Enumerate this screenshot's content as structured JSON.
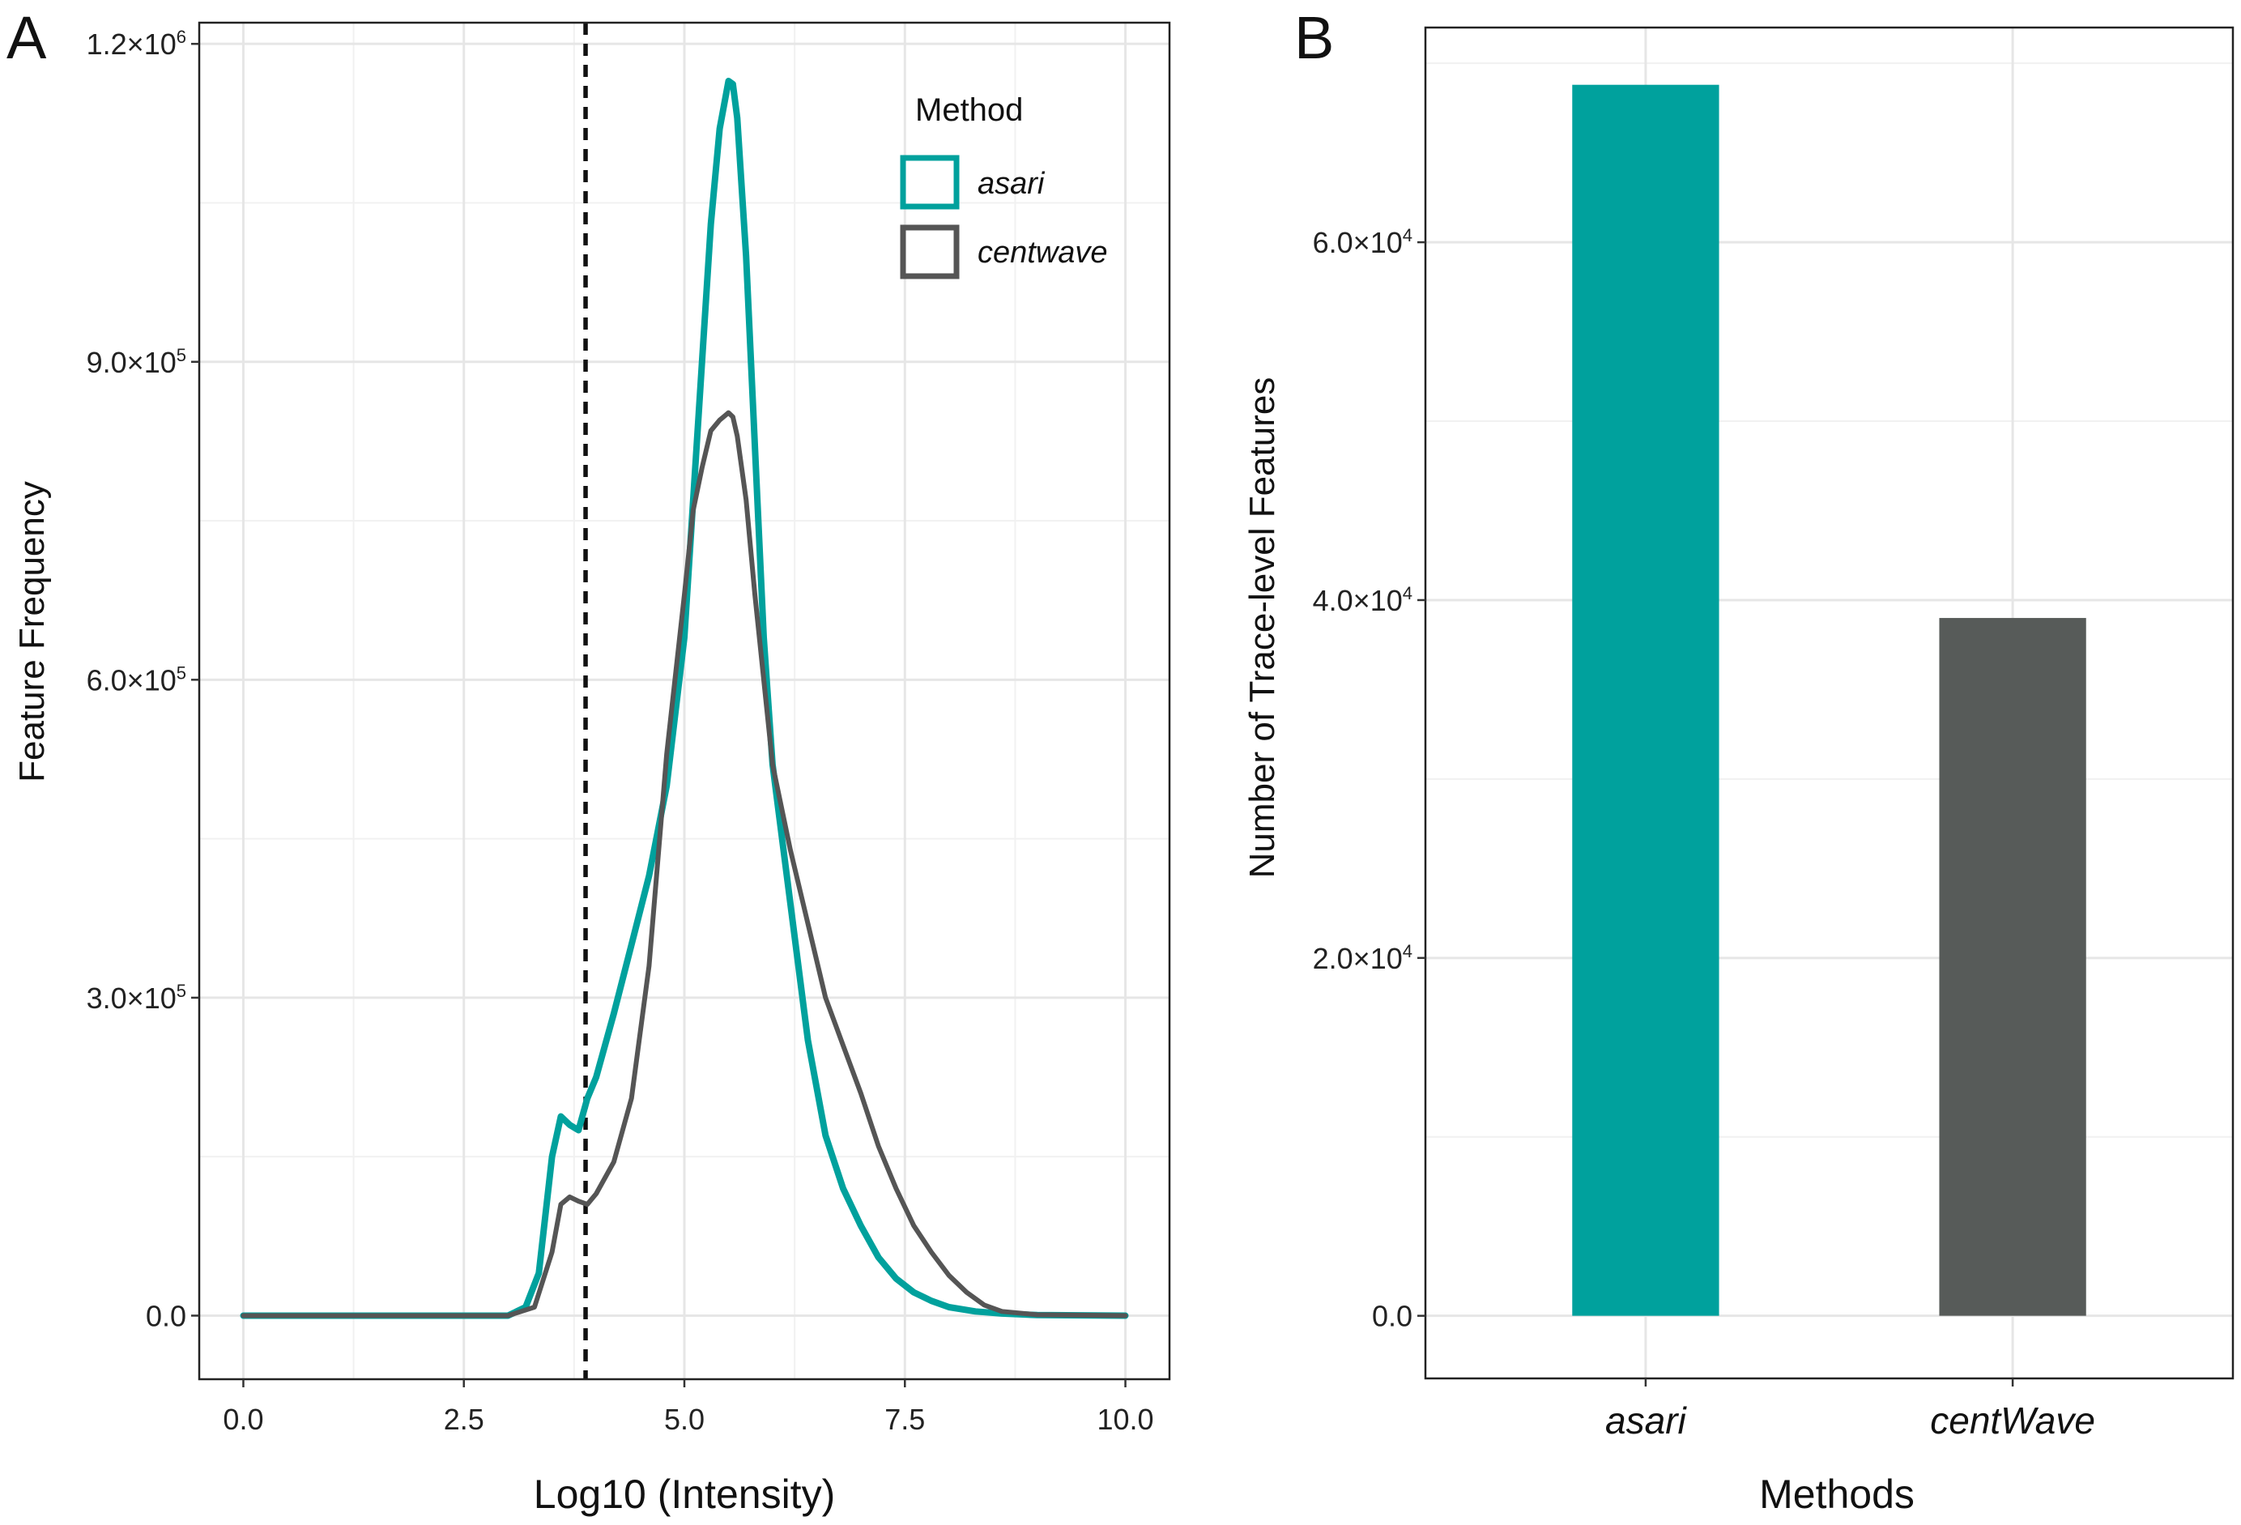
{
  "chart_data": [
    {
      "panel": "A",
      "type": "line",
      "title": "",
      "xlabel": "Log10 (Intensity)",
      "ylabel": "Feature Frequency",
      "xlim": [
        -0.5,
        10.5
      ],
      "ylim": [
        -60000,
        1220000
      ],
      "x_ticks": [
        0.0,
        2.5,
        5.0,
        7.5,
        10.0
      ],
      "x_tick_labels": [
        "0.0",
        "2.5",
        "5.0",
        "7.5",
        "10.0"
      ],
      "y_ticks": [
        0,
        300000,
        600000,
        900000,
        1200000
      ],
      "y_tick_labels": [
        {
          "mantissa": "0.0",
          "exp": ""
        },
        {
          "mantissa": "3.0×10",
          "exp": "5"
        },
        {
          "mantissa": "6.0×10",
          "exp": "5"
        },
        {
          "mantissa": "9.0×10",
          "exp": "5"
        },
        {
          "mantissa": "1.2×10",
          "exp": "6"
        }
      ],
      "vline": {
        "x": 3.88,
        "style": "dashed"
      },
      "grid": true,
      "legend": {
        "title": "Method",
        "position": "top-right",
        "entries": [
          {
            "label": "asari",
            "color": "#00A19D"
          },
          {
            "label": "centwave",
            "color": "#555555"
          }
        ]
      },
      "series": [
        {
          "name": "asari",
          "color": "#00A19D",
          "x": [
            0,
            1,
            2,
            3,
            3.2,
            3.35,
            3.5,
            3.6,
            3.7,
            3.8,
            3.9,
            4.0,
            4.2,
            4.4,
            4.6,
            4.8,
            5.0,
            5.1,
            5.2,
            5.3,
            5.4,
            5.5,
            5.55,
            5.6,
            5.7,
            5.8,
            5.9,
            6.0,
            6.2,
            6.4,
            6.6,
            6.8,
            7.0,
            7.2,
            7.4,
            7.6,
            7.8,
            8.0,
            8.3,
            8.6,
            9.0,
            10.0
          ],
          "y": [
            0,
            0,
            0,
            0,
            8000,
            40000,
            150000,
            188000,
            180000,
            175000,
            205000,
            225000,
            285000,
            350000,
            415000,
            500000,
            640000,
            770000,
            900000,
            1030000,
            1120000,
            1165000,
            1162000,
            1130000,
            1000000,
            820000,
            640000,
            520000,
            390000,
            260000,
            170000,
            120000,
            85000,
            55000,
            35000,
            22000,
            14000,
            8000,
            4000,
            2000,
            500,
            0
          ]
        },
        {
          "name": "centwave",
          "color": "#555555",
          "x": [
            0,
            1,
            2,
            3,
            3.3,
            3.5,
            3.6,
            3.7,
            3.8,
            3.9,
            4.0,
            4.2,
            4.4,
            4.6,
            4.8,
            5.0,
            5.1,
            5.2,
            5.3,
            5.4,
            5.5,
            5.55,
            5.6,
            5.7,
            5.8,
            5.9,
            6.0,
            6.2,
            6.4,
            6.6,
            6.8,
            7.0,
            7.2,
            7.4,
            7.6,
            7.8,
            8.0,
            8.2,
            8.4,
            8.6,
            9.0,
            10.0
          ],
          "y": [
            0,
            0,
            0,
            0,
            8000,
            60000,
            105000,
            112000,
            108000,
            105000,
            115000,
            145000,
            205000,
            330000,
            530000,
            680000,
            760000,
            800000,
            835000,
            845000,
            852000,
            848000,
            830000,
            770000,
            680000,
            600000,
            520000,
            440000,
            370000,
            300000,
            255000,
            210000,
            160000,
            120000,
            85000,
            60000,
            38000,
            22000,
            10000,
            4000,
            800,
            0
          ]
        }
      ]
    },
    {
      "panel": "B",
      "type": "bar",
      "title": "",
      "xlabel": "Methods",
      "ylabel": "Number of Trace-level Features",
      "categories": [
        "asari",
        "centWave"
      ],
      "values": [
        68800,
        39000
      ],
      "colors": [
        "#00A19D",
        "#575B59"
      ],
      "ylim": [
        -3500,
        72000
      ],
      "y_ticks": [
        0,
        20000,
        40000,
        60000
      ],
      "y_minor_ticks": [
        10000,
        30000,
        50000,
        70000
      ],
      "y_tick_labels": [
        {
          "mantissa": "0.0",
          "exp": ""
        },
        {
          "mantissa": "2.0×10",
          "exp": "4"
        },
        {
          "mantissa": "4.0×10",
          "exp": "4"
        },
        {
          "mantissa": "6.0×10",
          "exp": "4"
        }
      ],
      "grid": true
    }
  ],
  "panel_labels": {
    "a": "A",
    "b": "B"
  }
}
